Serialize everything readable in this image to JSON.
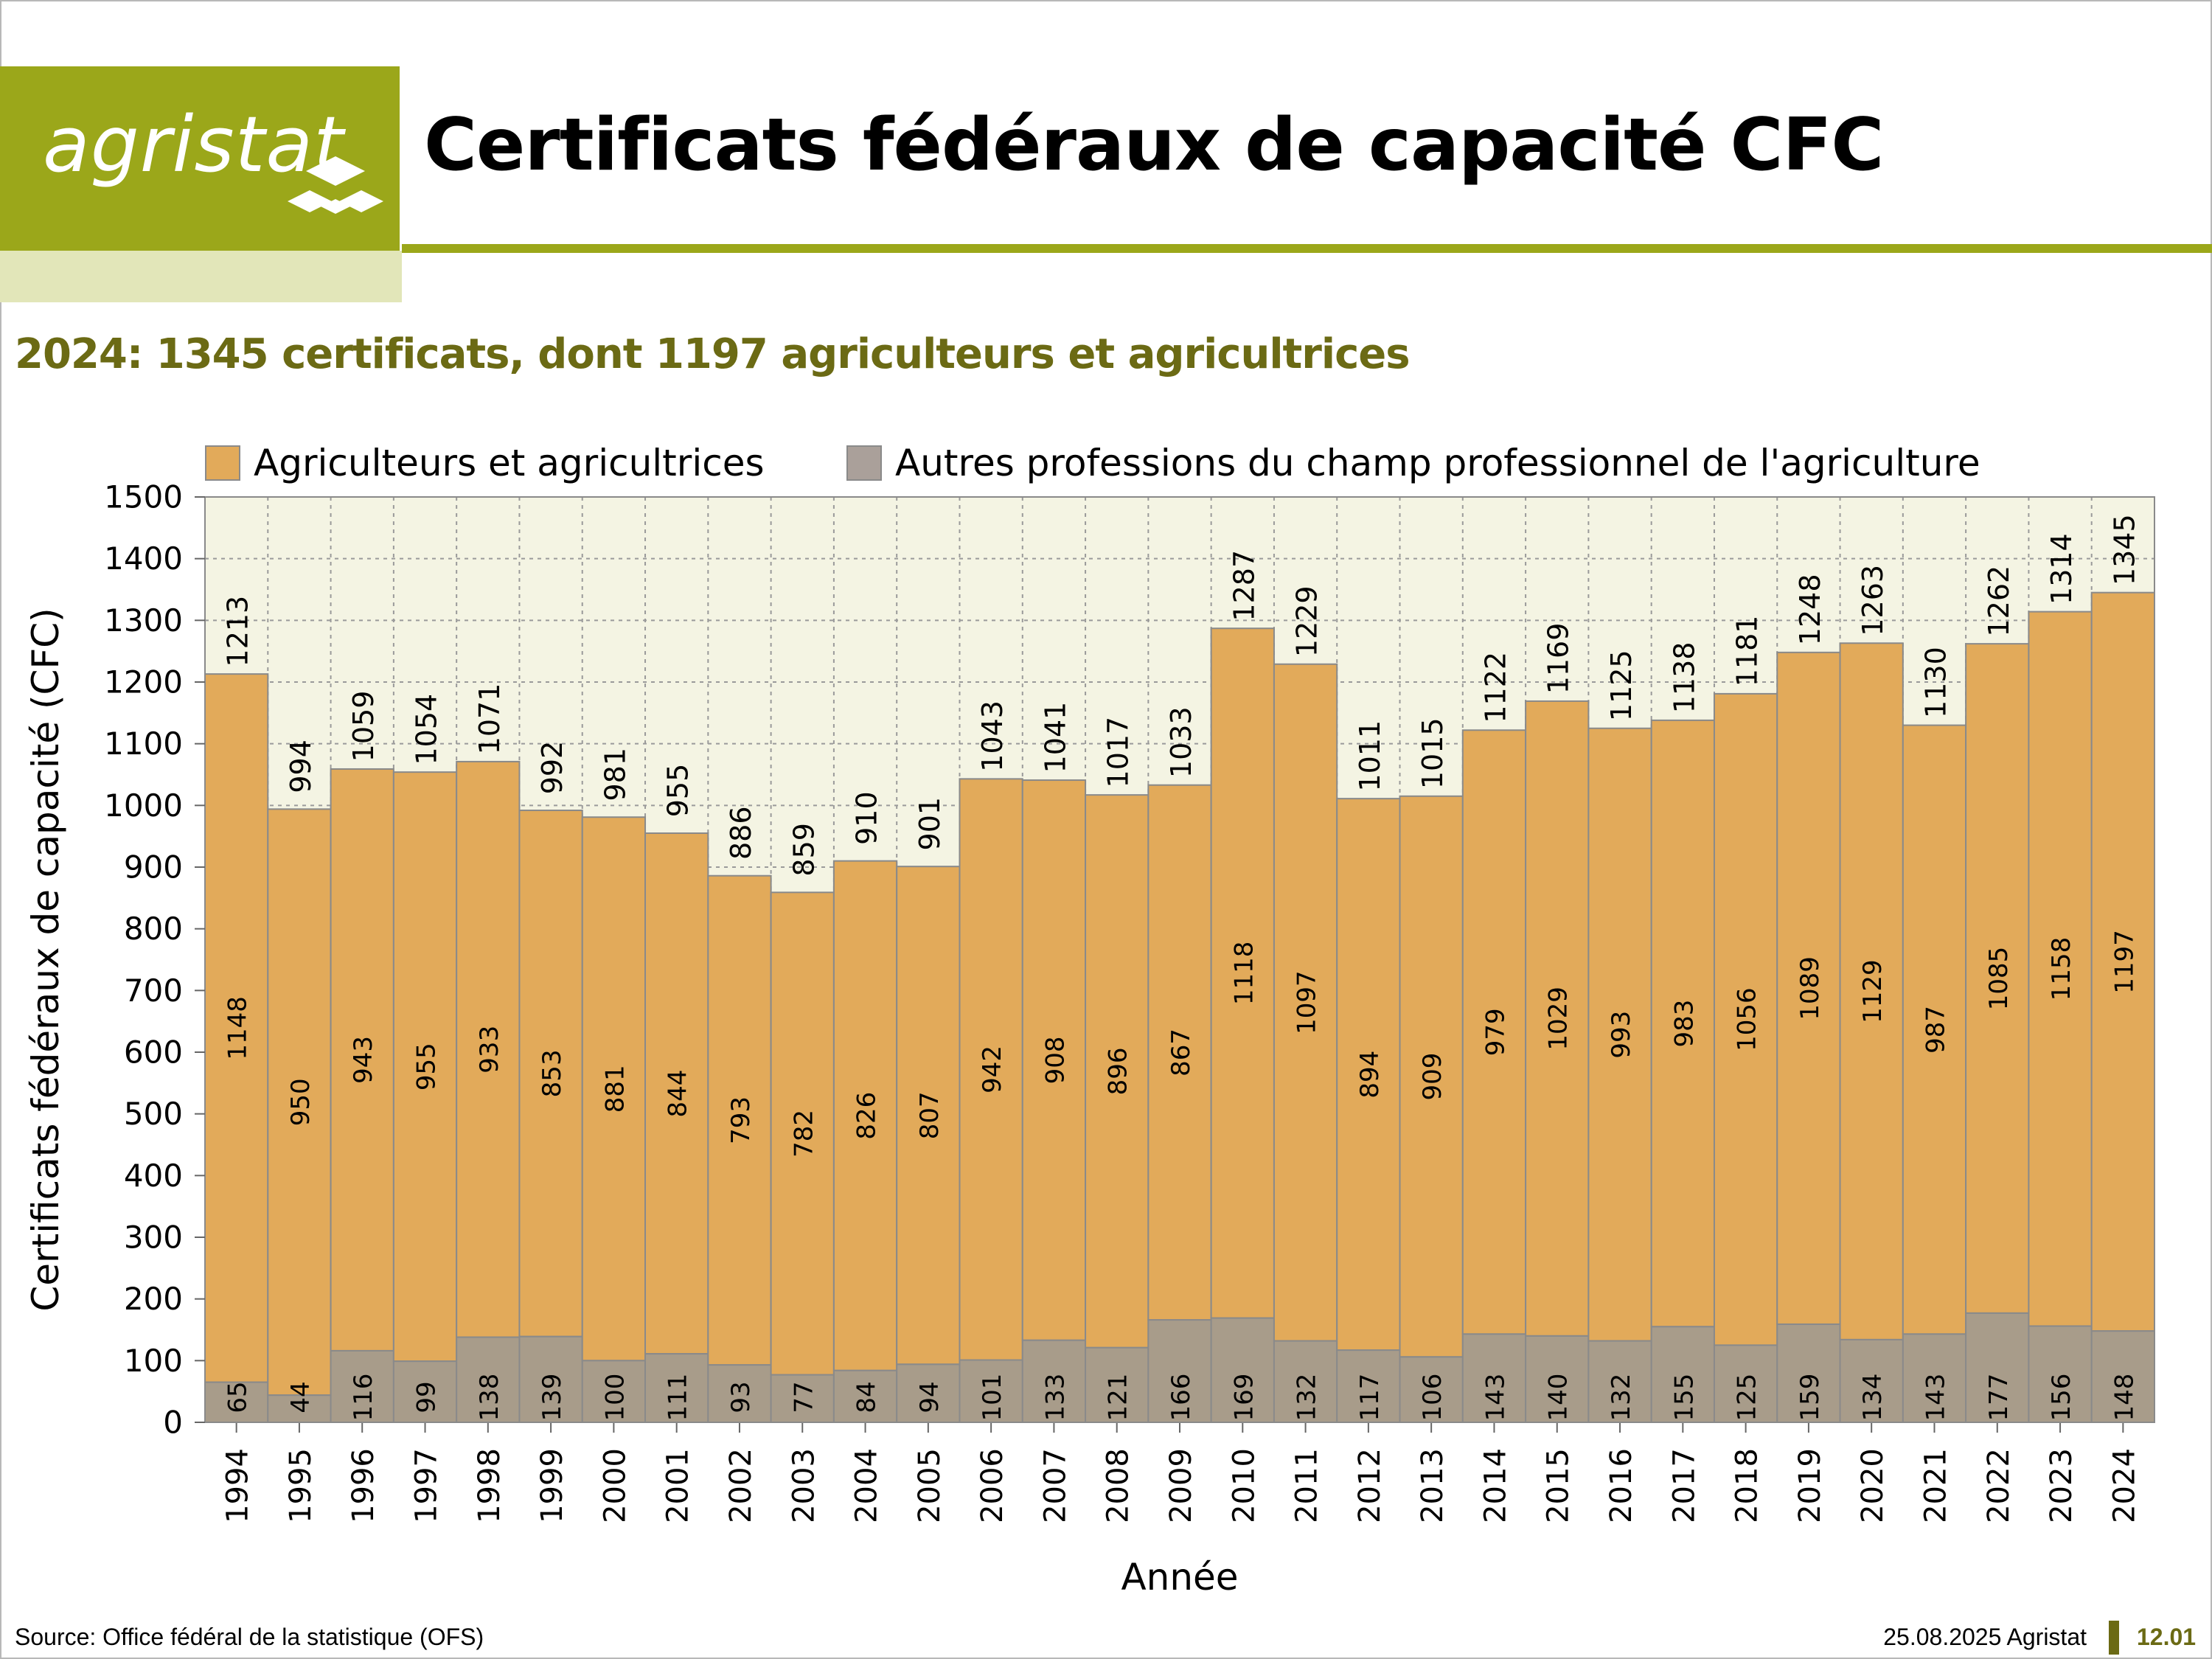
{
  "header": {
    "logo_text": "agristat",
    "title": "Certificats fédéraux de capacité CFC",
    "brand_color": "#9ba71a"
  },
  "subtitle": "2024: 1345 certificats, dont 1197 agriculteurs et agricultrices",
  "footer": {
    "source": "Source: Office fédéral de la statistique (OFS)",
    "date_brand": "25.08.2025 Agristat",
    "page_number": "12.01"
  },
  "chart_data": {
    "type": "bar",
    "stacked": true,
    "xlabel": "Année",
    "ylabel": "Certificats fédéraux de capacité (CFC)",
    "ylim": [
      0,
      1500
    ],
    "yticks": [
      0,
      100,
      200,
      300,
      400,
      500,
      600,
      700,
      800,
      900,
      1000,
      1100,
      1200,
      1300,
      1400,
      1500
    ],
    "grid": true,
    "legend_position": "top",
    "categories": [
      "1994",
      "1995",
      "1996",
      "1997",
      "1998",
      "1999",
      "2000",
      "2001",
      "2002",
      "2003",
      "2004",
      "2005",
      "2006",
      "2007",
      "2008",
      "2009",
      "2010",
      "2011",
      "2012",
      "2013",
      "2014",
      "2015",
      "2016",
      "2017",
      "2018",
      "2019",
      "2020",
      "2021",
      "2022",
      "2023",
      "2024"
    ],
    "series": [
      {
        "name": "Autres professions du champ professionnel de l'agriculture",
        "color": "#a89c8a",
        "values": [
          65,
          44,
          116,
          99,
          138,
          139,
          100,
          111,
          93,
          77,
          84,
          94,
          101,
          133,
          121,
          166,
          169,
          132,
          117,
          106,
          143,
          140,
          132,
          155,
          125,
          159,
          134,
          143,
          177,
          156,
          148
        ]
      },
      {
        "name": "Agriculteurs et agricultrices",
        "color": "#e2aa5a",
        "values": [
          1148,
          950,
          943,
          955,
          933,
          853,
          881,
          844,
          793,
          782,
          826,
          807,
          942,
          908,
          896,
          867,
          1118,
          1097,
          894,
          909,
          979,
          1029,
          993,
          983,
          1056,
          1089,
          1129,
          987,
          1085,
          1158,
          1197
        ]
      }
    ],
    "totals": [
      1213,
      994,
      1059,
      1054,
      1071,
      992,
      981,
      955,
      886,
      859,
      910,
      901,
      1043,
      1041,
      1017,
      1033,
      1287,
      1229,
      1011,
      1015,
      1122,
      1169,
      1125,
      1138,
      1181,
      1248,
      1263,
      1130,
      1262,
      1314,
      1345
    ],
    "legend_order": [
      1,
      0
    ],
    "plot_background": "#f4f4e3"
  }
}
